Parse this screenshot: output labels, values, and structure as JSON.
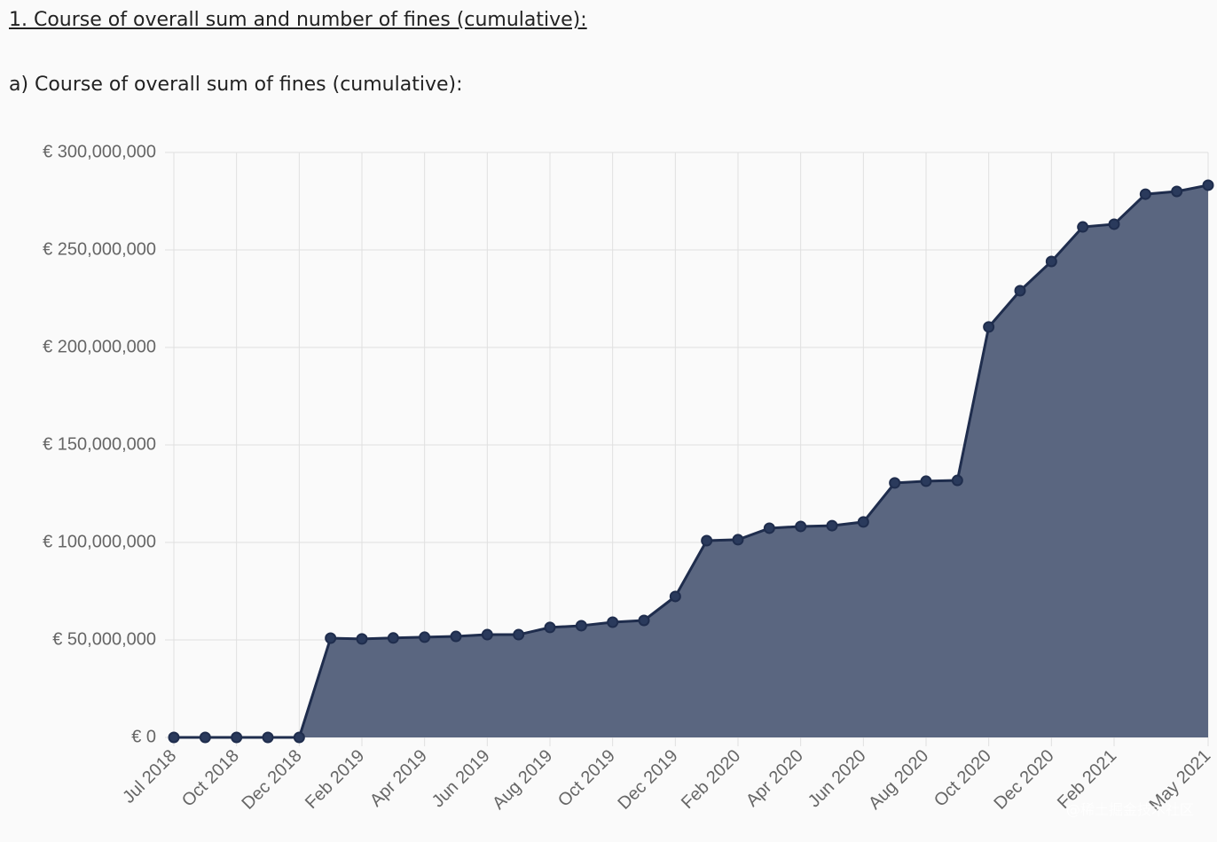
{
  "chart_data": {
    "type": "area",
    "title": "1. Course of overall sum and number of fines (cumulative):",
    "subtitle": "a) Course of overall sum of fines (cumulative):",
    "categories": [
      "Jul 2018",
      null,
      "Oct 2018",
      null,
      "Dec 2018",
      null,
      "Feb 2019",
      null,
      "Apr 2019",
      null,
      "Jun 2019",
      null,
      "Aug 2019",
      null,
      "Oct 2019",
      null,
      "Dec 2019",
      null,
      "Feb 2020",
      null,
      "Apr 2020",
      null,
      "Jun 2020",
      null,
      "Aug 2020",
      null,
      "Oct 2020",
      null,
      "Dec 2020",
      null,
      "Feb 2021",
      null,
      null,
      "May 2021"
    ],
    "values": [
      0,
      0,
      0,
      0,
      0,
      50900000,
      50500000,
      51000000,
      51400000,
      51800000,
      52700000,
      52700000,
      56400000,
      57300000,
      59100000,
      60000000,
      72300000,
      100900000,
      101400000,
      107300000,
      108200000,
      108600000,
      110500000,
      130500000,
      131400000,
      131800000,
      210500000,
      229100000,
      244100000,
      261800000,
      263200000,
      278600000,
      280000000,
      283200000
    ],
    "color": "#5a6680",
    "line_color": "#1f2d4d",
    "ylim": [
      0,
      300000000
    ],
    "yticks": [
      {
        "value": 0,
        "label": "€ 0"
      },
      {
        "value": 50000000,
        "label": "€ 50,000,000"
      },
      {
        "value": 100000000,
        "label": "€ 100,000,000"
      },
      {
        "value": 150000000,
        "label": "€ 150,000,000"
      },
      {
        "value": 200000000,
        "label": "€ 200,000,000"
      },
      {
        "value": 250000000,
        "label": "€ 250,000,000"
      },
      {
        "value": 300000000,
        "label": "€ 300,000,000"
      }
    ],
    "grid": true
  },
  "watermark": "@稀土掘金技术社区"
}
